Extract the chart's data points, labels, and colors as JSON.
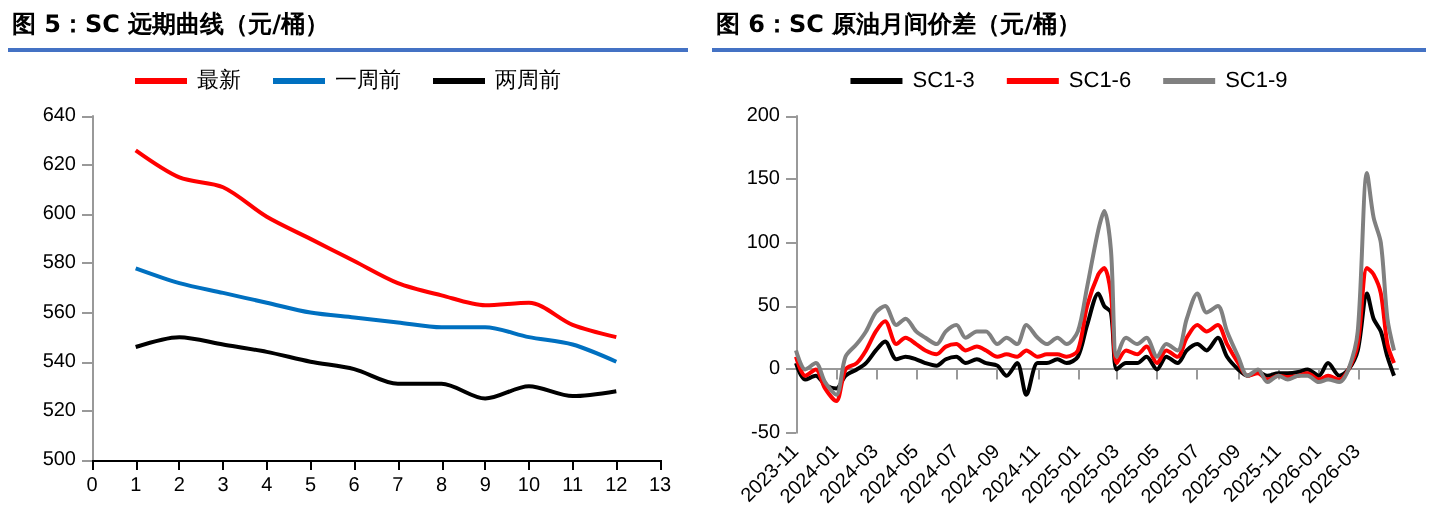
{
  "chart_data": [
    {
      "type": "line",
      "title": "图 5：SC 远期曲线（元/桶）",
      "x": [
        1,
        2,
        3,
        4,
        5,
        6,
        7,
        8,
        9,
        10,
        11,
        12
      ],
      "xlim": [
        0,
        13
      ],
      "xticks": [
        0,
        1,
        2,
        3,
        4,
        5,
        6,
        7,
        8,
        9,
        10,
        11,
        12,
        13
      ],
      "ylim": [
        500,
        640
      ],
      "yticks": [
        500,
        520,
        540,
        560,
        580,
        600,
        620,
        640
      ],
      "grid": false,
      "legend": "top",
      "marker": "none",
      "series": [
        {
          "name": "最新",
          "color": "#ff0000",
          "values": [
            626,
            615,
            611,
            599,
            590,
            581,
            572,
            567,
            563,
            564,
            555,
            550
          ]
        },
        {
          "name": "一周前",
          "color": "#0070c0",
          "values": [
            578,
            572,
            568,
            564,
            560,
            558,
            556,
            554,
            554,
            550,
            547,
            540
          ]
        },
        {
          "name": "两周前",
          "color": "#000000",
          "values": [
            546,
            550,
            547,
            544,
            540,
            537,
            531,
            531,
            525,
            530,
            526,
            528
          ]
        }
      ]
    },
    {
      "type": "line",
      "title": "图 6：SC 原油月间价差（元/桶）",
      "x": [
        "2023-11-01",
        "2023-11-15",
        "2023-12-01",
        "2023-12-15",
        "2024-01-01",
        "2024-01-15",
        "2024-02-01",
        "2024-02-15",
        "2024-03-01",
        "2024-03-15",
        "2024-04-01",
        "2024-04-15",
        "2024-05-01",
        "2024-05-15",
        "2024-06-01",
        "2024-06-15",
        "2024-07-01",
        "2024-07-15",
        "2024-08-01",
        "2024-08-15",
        "2024-09-01",
        "2024-09-15",
        "2024-10-01",
        "2024-10-15",
        "2024-11-01",
        "2024-11-15",
        "2024-12-01",
        "2024-12-15",
        "2025-01-01",
        "2025-01-15",
        "2025-02-01",
        "2025-02-10",
        "2025-02-20",
        "2025-03-01",
        "2025-03-15",
        "2025-04-01",
        "2025-04-15",
        "2025-05-01",
        "2025-05-15",
        "2025-06-01",
        "2025-06-15",
        "2025-07-01",
        "2025-07-15",
        "2025-08-01",
        "2025-08-15",
        "2025-09-01",
        "2025-09-15",
        "2025-10-01",
        "2025-10-15",
        "2025-11-01",
        "2025-11-15",
        "2025-12-01",
        "2025-12-15",
        "2026-01-01",
        "2026-01-15",
        "2026-02-01",
        "2026-02-15",
        "2026-03-01",
        "2026-03-15",
        "2026-03-25",
        "2026-04-05",
        "2026-04-15",
        "2026-04-25"
      ],
      "xlim": [
        "2023-11-01",
        "2026-05-01"
      ],
      "xticks": [
        "2023-11",
        "2024-01",
        "2024-03",
        "2024-05",
        "2024-07",
        "2024-09",
        "2024-11",
        "2025-01",
        "2025-03",
        "2025-05",
        "2025-07",
        "2025-09",
        "2025-11",
        "2026-01",
        "2026-03"
      ],
      "ylim": [
        -50,
        200
      ],
      "yticks": [
        -50,
        0,
        50,
        100,
        150,
        200
      ],
      "legend": "top",
      "marker": "none",
      "series": [
        {
          "name": "SC1-3",
          "color": "#000000",
          "values": [
            5,
            -8,
            -5,
            -12,
            -15,
            -5,
            0,
            5,
            15,
            22,
            8,
            10,
            8,
            5,
            3,
            8,
            10,
            5,
            8,
            5,
            3,
            -5,
            5,
            -20,
            5,
            5,
            8,
            5,
            10,
            35,
            60,
            50,
            45,
            0,
            5,
            5,
            10,
            0,
            10,
            5,
            15,
            20,
            15,
            25,
            10,
            0,
            -5,
            -2,
            -5,
            -3,
            -3,
            -2,
            0,
            -5,
            5,
            -5,
            0,
            15,
            60,
            40,
            30,
            10,
            -5
          ]
        },
        {
          "name": "SC1-6",
          "color": "#ff0000",
          "values": [
            10,
            -5,
            0,
            -15,
            -25,
            0,
            5,
            15,
            30,
            38,
            20,
            25,
            20,
            15,
            12,
            18,
            20,
            15,
            18,
            15,
            10,
            12,
            10,
            15,
            10,
            12,
            12,
            10,
            15,
            50,
            75,
            80,
            60,
            5,
            15,
            12,
            18,
            5,
            15,
            10,
            25,
            35,
            30,
            35,
            20,
            5,
            -5,
            -3,
            -8,
            -5,
            -6,
            -5,
            -3,
            -8,
            -5,
            -8,
            0,
            20,
            80,
            75,
            60,
            20,
            5
          ]
        },
        {
          "name": "SC1-9",
          "color": "#808080",
          "values": [
            15,
            0,
            5,
            -10,
            -20,
            10,
            20,
            30,
            45,
            50,
            35,
            40,
            30,
            25,
            20,
            30,
            35,
            25,
            30,
            30,
            20,
            25,
            20,
            35,
            25,
            20,
            25,
            20,
            30,
            65,
            110,
            125,
            95,
            10,
            25,
            20,
            25,
            10,
            20,
            15,
            40,
            60,
            45,
            50,
            30,
            10,
            -5,
            0,
            -10,
            -5,
            -8,
            -5,
            -5,
            -10,
            -8,
            -10,
            0,
            30,
            155,
            120,
            100,
            40,
            15
          ]
        }
      ]
    }
  ]
}
